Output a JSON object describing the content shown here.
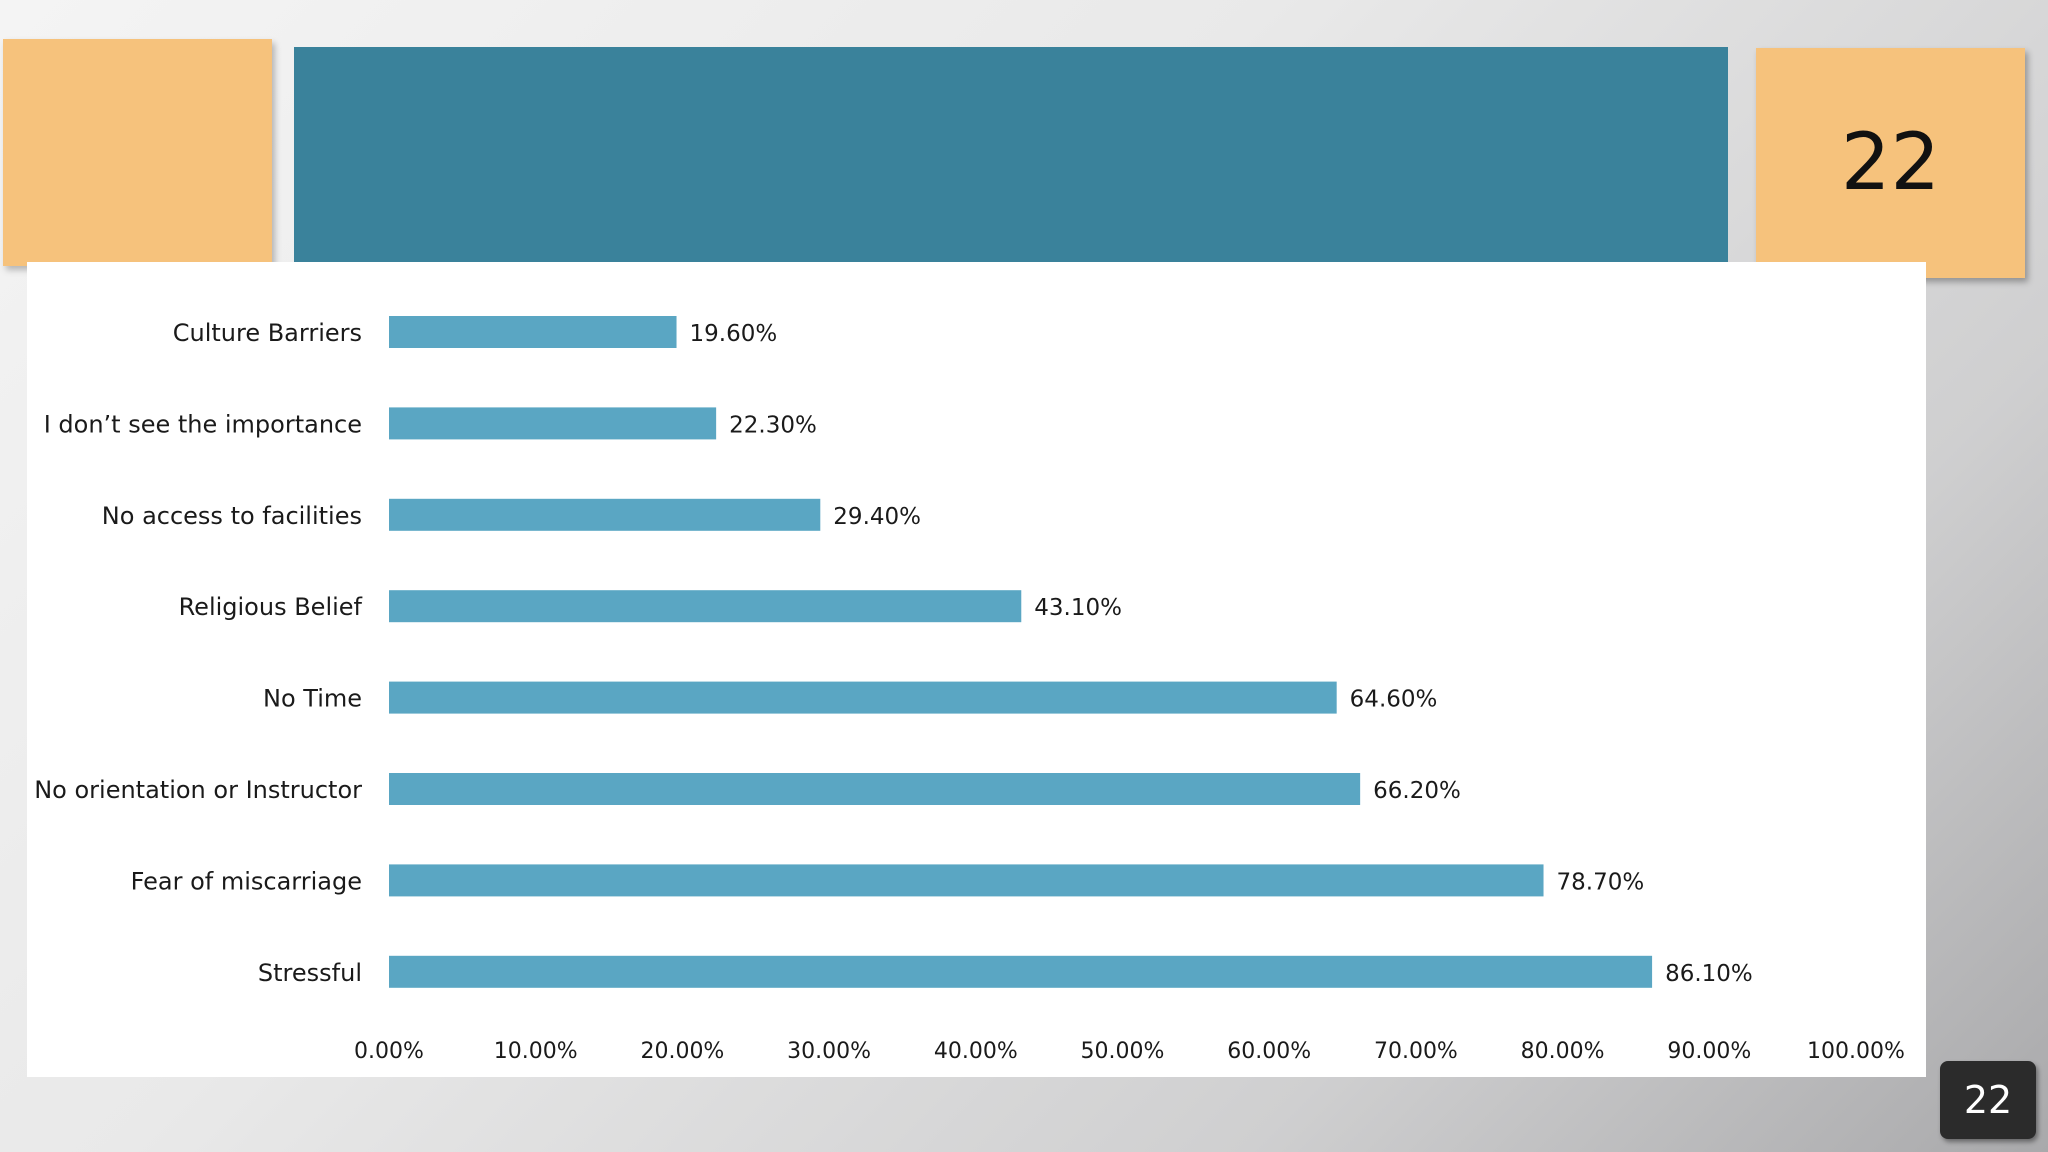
{
  "slide": {
    "number_title": "22",
    "page_badge": "22"
  },
  "colors": {
    "bar": "#5aa6c3",
    "teal_header": "#3a829b",
    "orange_block": "#f6c27c"
  },
  "chart_data": {
    "type": "bar",
    "orientation": "horizontal",
    "categories": [
      "Culture Barriers",
      "I don’t see the importance",
      "No access to facilities",
      "Religious Belief",
      "No Time",
      "No orientation or Instructor",
      "Fear of miscarriage",
      "Stressful"
    ],
    "values": [
      19.6,
      22.3,
      29.4,
      43.1,
      64.6,
      66.2,
      78.7,
      86.1
    ],
    "value_labels": [
      "19.60%",
      "22.30%",
      "29.40%",
      "43.10%",
      "64.60%",
      "66.20%",
      "78.70%",
      "86.10%"
    ],
    "xlim": [
      0,
      100
    ],
    "x_ticks": [
      "0.00%",
      "10.00%",
      "20.00%",
      "30.00%",
      "40.00%",
      "50.00%",
      "60.00%",
      "70.00%",
      "80.00%",
      "90.00%",
      "100.00%"
    ],
    "title": "",
    "xlabel": "",
    "ylabel": "",
    "grid": false,
    "legend": "none"
  }
}
